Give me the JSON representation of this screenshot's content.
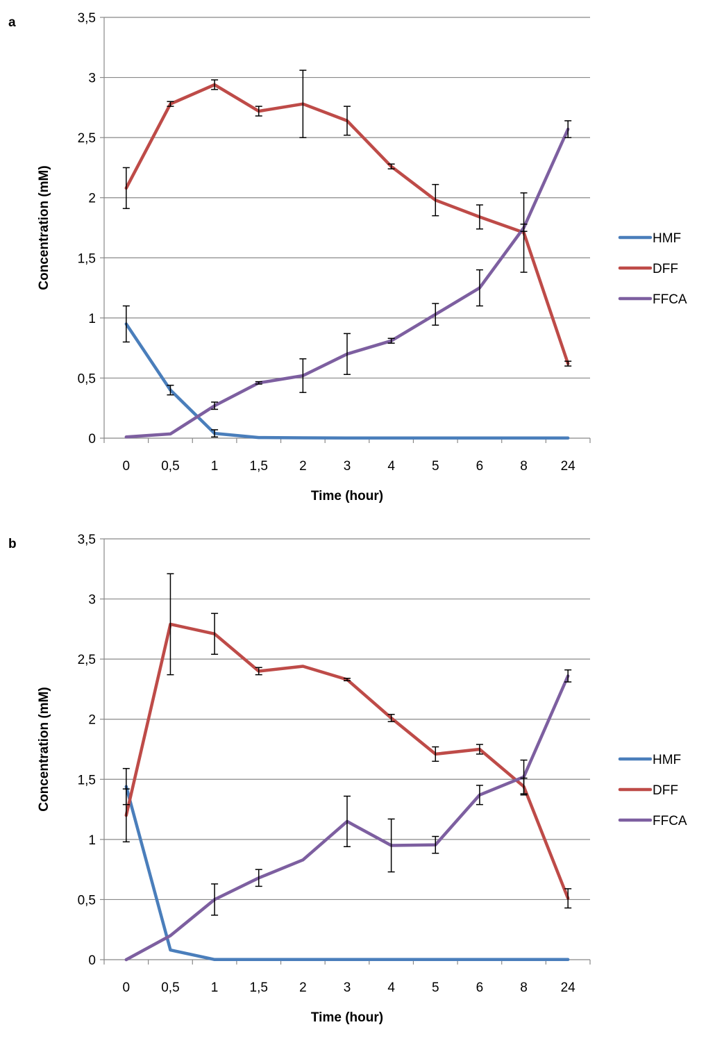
{
  "chart_data": [
    {
      "type": "line",
      "panel_label": "a",
      "categories": [
        "0",
        "0,5",
        "1",
        "1,5",
        "2",
        "3",
        "4",
        "5",
        "6",
        "8",
        "24"
      ],
      "xlabel": "Time (hour)",
      "ylabel": "Concentration (mM)",
      "ylim": [
        0,
        3.5
      ],
      "yticks": [
        "0",
        "0,5",
        "1",
        "1,5",
        "2",
        "2,5",
        "3",
        "3,5"
      ],
      "grid": true,
      "legend_position": "right",
      "series": [
        {
          "name": "HMF",
          "color": "#4a7ebb",
          "values": [
            0.95,
            0.4,
            0.04,
            0.005,
            0.003,
            0.002,
            0.001,
            0.001,
            0.001,
            0.001,
            0.001
          ],
          "errors": [
            0.15,
            0.04,
            0.03,
            0,
            0,
            0,
            0,
            0,
            0,
            0,
            0
          ]
        },
        {
          "name": "DFF",
          "color": "#be4b48",
          "values": [
            2.08,
            2.78,
            2.94,
            2.72,
            2.78,
            2.64,
            2.26,
            1.98,
            1.84,
            1.71,
            0.62
          ],
          "errors": [
            0.17,
            0.02,
            0.04,
            0.04,
            0.28,
            0.12,
            0.02,
            0.13,
            0.1,
            0.33,
            0.02
          ]
        },
        {
          "name": "FFCA",
          "color": "#7d5fa0",
          "values": [
            0.01,
            0.035,
            0.27,
            0.46,
            0.52,
            0.7,
            0.81,
            1.03,
            1.25,
            1.75,
            2.57
          ],
          "errors": [
            0,
            0,
            0.03,
            0.01,
            0.14,
            0.17,
            0.02,
            0.09,
            0.15,
            0.03,
            0.07
          ]
        }
      ]
    },
    {
      "type": "line",
      "panel_label": "b",
      "categories": [
        "0",
        "0,5",
        "1",
        "1,5",
        "2",
        "3",
        "4",
        "5",
        "6",
        "8",
        "24"
      ],
      "xlabel": "Time (hour)",
      "ylabel": "Concentration (mM)",
      "ylim": [
        0,
        3.5
      ],
      "yticks": [
        "0",
        "0,5",
        "1",
        "1,5",
        "2",
        "2,5",
        "3",
        "3,5"
      ],
      "grid": true,
      "legend_position": "right",
      "series": [
        {
          "name": "HMF",
          "color": "#4a7ebb",
          "values": [
            1.44,
            0.08,
            0.001,
            0.001,
            0.001,
            0.001,
            0.001,
            0.001,
            0.001,
            0.001,
            0.001
          ],
          "errors": [
            0.15,
            0,
            0,
            0,
            0,
            0,
            0,
            0,
            0,
            0,
            0
          ]
        },
        {
          "name": "DFF",
          "color": "#be4b48",
          "values": [
            1.2,
            2.79,
            2.71,
            2.4,
            2.44,
            2.33,
            2.01,
            1.71,
            1.75,
            1.44,
            0.51
          ],
          "errors": [
            0.22,
            0.42,
            0.17,
            0.03,
            0,
            0.01,
            0.03,
            0.06,
            0.04,
            0.07,
            0.08
          ]
        },
        {
          "name": "FFCA",
          "color": "#7d5fa0",
          "values": [
            0.0,
            0.2,
            0.5,
            0.68,
            0.83,
            1.15,
            0.95,
            0.955,
            1.37,
            1.52,
            2.36
          ],
          "errors": [
            0,
            0,
            0.13,
            0.07,
            0,
            0.21,
            0.22,
            0.07,
            0.08,
            0.14,
            0.05
          ]
        }
      ]
    }
  ]
}
